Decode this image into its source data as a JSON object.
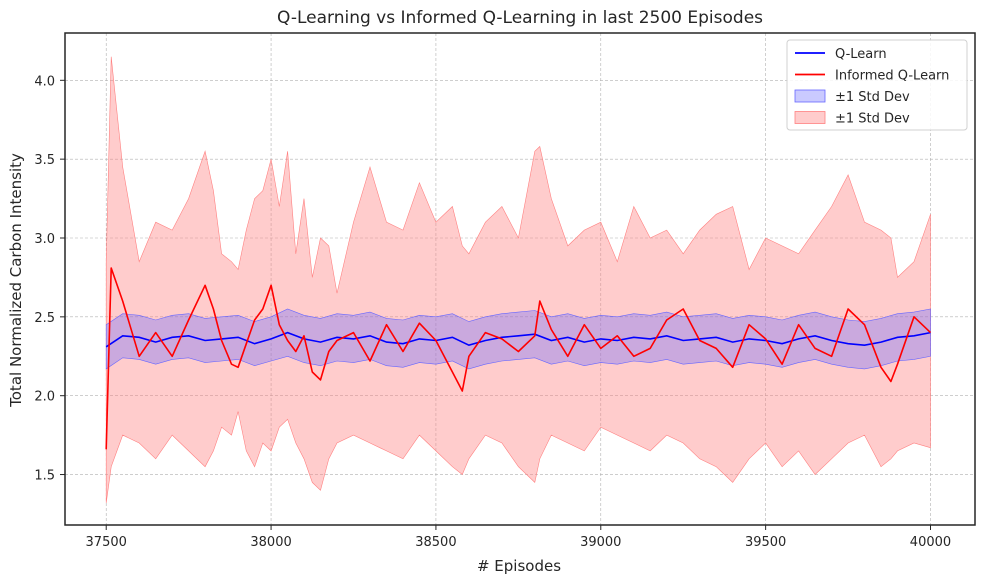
{
  "chart_data": {
    "type": "line",
    "title": "Q-Learning vs Informed Q-Learning in last 2500 Episodes",
    "xlabel": "# Episodes",
    "ylabel": "Total Normalized Carbon Intensity",
    "xlim": [
      37375,
      40135
    ],
    "ylim": [
      1.18,
      4.3
    ],
    "xticks": [
      37500,
      38000,
      38500,
      39000,
      39500,
      40000
    ],
    "yticks": [
      1.5,
      2.0,
      2.5,
      3.0,
      3.5,
      4.0
    ],
    "xtick_labels": [
      "37500",
      "38000",
      "38500",
      "39000",
      "39500",
      "40000"
    ],
    "ytick_labels": [
      "1.5",
      "2.0",
      "2.5",
      "3.0",
      "3.5",
      "4.0"
    ],
    "grid": true,
    "legend_position": "top-right",
    "legend": [
      "Q-Learn",
      "Informed Q-Learn",
      "±1 Std Dev",
      "±1 Std Dev"
    ],
    "colors": {
      "q_learn": "#0000ff",
      "informed": "#ff0000",
      "q_band": "#6666ff",
      "informed_band": "#ff8080"
    },
    "series": [
      {
        "name": "Q-Learn",
        "x": [
          37500,
          37550,
          37600,
          37650,
          37700,
          37750,
          37800,
          37850,
          37900,
          37950,
          38000,
          38050,
          38100,
          38150,
          38200,
          38250,
          38300,
          38350,
          38400,
          38450,
          38500,
          38550,
          38600,
          38650,
          38700,
          38750,
          38800,
          38850,
          38900,
          38950,
          39000,
          39050,
          39100,
          39150,
          39200,
          39250,
          39300,
          39350,
          39400,
          39450,
          39500,
          39550,
          39600,
          39650,
          39700,
          39750,
          39800,
          39850,
          39900,
          39950,
          40000
        ],
        "y": [
          2.31,
          2.38,
          2.37,
          2.34,
          2.37,
          2.38,
          2.35,
          2.36,
          2.37,
          2.33,
          2.36,
          2.4,
          2.36,
          2.34,
          2.37,
          2.36,
          2.38,
          2.34,
          2.33,
          2.36,
          2.35,
          2.37,
          2.32,
          2.35,
          2.37,
          2.38,
          2.39,
          2.35,
          2.37,
          2.34,
          2.36,
          2.35,
          2.37,
          2.36,
          2.38,
          2.35,
          2.36,
          2.37,
          2.34,
          2.36,
          2.35,
          2.33,
          2.36,
          2.38,
          2.35,
          2.33,
          2.32,
          2.34,
          2.37,
          2.38,
          2.4
        ],
        "band_low": [
          2.17,
          2.24,
          2.23,
          2.2,
          2.23,
          2.24,
          2.21,
          2.22,
          2.23,
          2.19,
          2.22,
          2.25,
          2.21,
          2.19,
          2.22,
          2.21,
          2.23,
          2.19,
          2.18,
          2.21,
          2.2,
          2.22,
          2.17,
          2.2,
          2.22,
          2.23,
          2.24,
          2.2,
          2.22,
          2.19,
          2.21,
          2.2,
          2.22,
          2.21,
          2.23,
          2.2,
          2.21,
          2.22,
          2.19,
          2.21,
          2.2,
          2.18,
          2.21,
          2.23,
          2.2,
          2.18,
          2.17,
          2.19,
          2.22,
          2.23,
          2.25
        ],
        "band_high": [
          2.45,
          2.52,
          2.51,
          2.48,
          2.51,
          2.52,
          2.49,
          2.5,
          2.51,
          2.47,
          2.5,
          2.55,
          2.51,
          2.49,
          2.52,
          2.51,
          2.53,
          2.49,
          2.48,
          2.51,
          2.5,
          2.52,
          2.47,
          2.5,
          2.52,
          2.53,
          2.54,
          2.5,
          2.52,
          2.49,
          2.51,
          2.5,
          2.52,
          2.51,
          2.53,
          2.5,
          2.51,
          2.52,
          2.49,
          2.51,
          2.5,
          2.48,
          2.51,
          2.53,
          2.5,
          2.48,
          2.47,
          2.49,
          2.52,
          2.53,
          2.55
        ]
      },
      {
        "name": "Informed Q-Learn",
        "x": [
          37500,
          37515,
          37550,
          37600,
          37650,
          37700,
          37750,
          37800,
          37825,
          37850,
          37880,
          37900,
          37925,
          37950,
          37975,
          38000,
          38025,
          38050,
          38075,
          38100,
          38125,
          38150,
          38175,
          38200,
          38250,
          38300,
          38350,
          38400,
          38450,
          38500,
          38550,
          38580,
          38600,
          38650,
          38700,
          38750,
          38800,
          38815,
          38850,
          38900,
          38950,
          39000,
          39050,
          39100,
          39150,
          39200,
          39250,
          39300,
          39350,
          39400,
          39450,
          39500,
          39550,
          39600,
          39650,
          39700,
          39750,
          39800,
          39850,
          39880,
          39900,
          39950,
          40000
        ],
        "y": [
          1.66,
          2.81,
          2.6,
          2.25,
          2.4,
          2.25,
          2.48,
          2.7,
          2.55,
          2.35,
          2.2,
          2.18,
          2.33,
          2.48,
          2.55,
          2.7,
          2.45,
          2.35,
          2.28,
          2.38,
          2.15,
          2.1,
          2.28,
          2.35,
          2.4,
          2.22,
          2.45,
          2.28,
          2.46,
          2.35,
          2.15,
          2.03,
          2.25,
          2.4,
          2.36,
          2.28,
          2.38,
          2.6,
          2.42,
          2.25,
          2.45,
          2.3,
          2.38,
          2.25,
          2.3,
          2.48,
          2.55,
          2.35,
          2.3,
          2.18,
          2.45,
          2.36,
          2.2,
          2.45,
          2.3,
          2.25,
          2.55,
          2.45,
          2.18,
          2.09,
          2.2,
          2.5,
          2.4
        ],
        "band_low": [
          1.32,
          1.55,
          1.75,
          1.7,
          1.6,
          1.75,
          1.65,
          1.55,
          1.65,
          1.8,
          1.75,
          1.9,
          1.65,
          1.55,
          1.7,
          1.65,
          1.8,
          1.85,
          1.7,
          1.6,
          1.45,
          1.4,
          1.6,
          1.7,
          1.75,
          1.7,
          1.65,
          1.6,
          1.75,
          1.65,
          1.55,
          1.5,
          1.6,
          1.75,
          1.7,
          1.55,
          1.45,
          1.6,
          1.75,
          1.7,
          1.65,
          1.8,
          1.75,
          1.7,
          1.65,
          1.75,
          1.7,
          1.6,
          1.55,
          1.45,
          1.6,
          1.7,
          1.55,
          1.65,
          1.5,
          1.6,
          1.7,
          1.75,
          1.55,
          1.6,
          1.65,
          1.7,
          1.67
        ],
        "band_high": [
          2.85,
          4.15,
          3.45,
          2.85,
          3.1,
          3.05,
          3.25,
          3.55,
          3.3,
          2.9,
          2.85,
          2.8,
          3.05,
          3.25,
          3.3,
          3.5,
          3.2,
          3.55,
          2.9,
          3.25,
          2.75,
          3.0,
          2.95,
          2.65,
          3.1,
          3.45,
          3.1,
          3.05,
          3.35,
          3.1,
          3.2,
          2.95,
          2.9,
          3.1,
          3.2,
          3.0,
          3.55,
          3.58,
          3.25,
          2.95,
          3.05,
          3.1,
          2.85,
          3.2,
          3.0,
          3.05,
          2.9,
          3.05,
          3.15,
          3.2,
          2.8,
          3.0,
          2.95,
          2.9,
          3.05,
          3.2,
          3.4,
          3.1,
          3.05,
          3.0,
          2.75,
          2.85,
          3.15
        ]
      }
    ]
  }
}
